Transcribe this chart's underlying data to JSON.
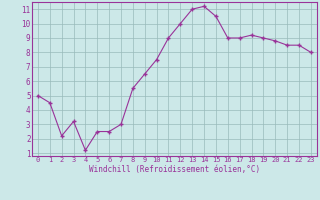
{
  "x": [
    0,
    1,
    2,
    3,
    4,
    5,
    6,
    7,
    8,
    9,
    10,
    11,
    12,
    13,
    14,
    15,
    16,
    17,
    18,
    19,
    20,
    21,
    22,
    23
  ],
  "y": [
    5.0,
    4.5,
    2.2,
    3.2,
    1.2,
    2.5,
    2.5,
    3.0,
    5.5,
    6.5,
    7.5,
    9.0,
    10.0,
    11.0,
    11.2,
    10.5,
    9.0,
    9.0,
    9.2,
    9.0,
    8.8,
    8.5,
    8.5,
    8.0
  ],
  "line_color": "#993399",
  "marker_color": "#993399",
  "bg_color": "#cce8e8",
  "grid_color": "#99bbbb",
  "xlabel": "Windchill (Refroidissement éolien,°C)",
  "xlabel_color": "#993399",
  "tick_color": "#993399",
  "axis_color": "#993399",
  "xlim": [
    -0.5,
    23.5
  ],
  "ylim": [
    0.8,
    11.5
  ],
  "yticks": [
    1,
    2,
    3,
    4,
    5,
    6,
    7,
    8,
    9,
    10,
    11
  ],
  "xticks": [
    0,
    1,
    2,
    3,
    4,
    5,
    6,
    7,
    8,
    9,
    10,
    11,
    12,
    13,
    14,
    15,
    16,
    17,
    18,
    19,
    20,
    21,
    22,
    23
  ],
  "xtick_labels": [
    "0",
    "1",
    "2",
    "3",
    "4",
    "5",
    "6",
    "7",
    "8",
    "9",
    "10",
    "11",
    "12",
    "13",
    "14",
    "15",
    "16",
    "17",
    "18",
    "19",
    "20",
    "21",
    "22",
    "23"
  ],
  "tick_fontsize": 5.0,
  "xlabel_fontsize": 5.5,
  "figsize": [
    3.2,
    2.0
  ],
  "dpi": 100
}
